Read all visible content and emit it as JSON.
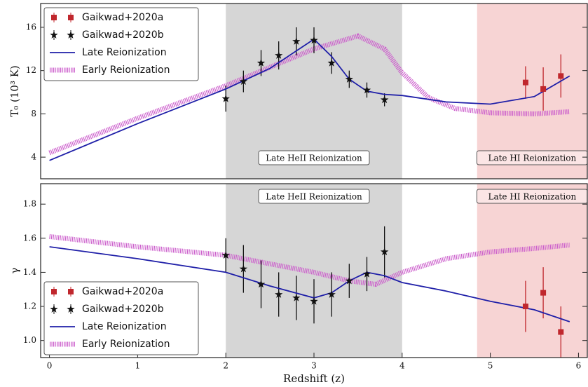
{
  "chart_data": [
    {
      "type": "line",
      "ylabel": "T₀ (10³ K)",
      "xlim": [
        -0.1,
        6.1
      ],
      "ylim": [
        2,
        18.2
      ],
      "yticks": [
        4,
        8,
        12,
        16
      ],
      "legend": "upper left",
      "annotation_position": "bottom",
      "spans": [
        {
          "xlim": [
            2,
            4
          ],
          "color": "#d6d6d6",
          "label": "Late HeII Reionization"
        },
        {
          "xlim": [
            4.85,
            6.1
          ],
          "color": "#f7d4d4",
          "label": "Late HI Reionization"
        }
      ],
      "series": [
        {
          "name": "Gaikwad+2020a",
          "color": "#c0272d",
          "marker": "square",
          "x": [
            5.4,
            5.6,
            5.8
          ],
          "values": [
            10.9,
            10.3,
            11.5
          ],
          "errors": [
            1.5,
            2,
            2
          ]
        },
        {
          "name": "Gaikwad+2020b",
          "color": "#111111",
          "marker": "star",
          "x": [
            2.0,
            2.2,
            2.4,
            2.6,
            2.8,
            3.0,
            3.2,
            3.4,
            3.6,
            3.8
          ],
          "values": [
            9.4,
            11.0,
            12.7,
            13.4,
            14.7,
            14.8,
            12.7,
            11.2,
            10.2,
            9.3
          ],
          "errors": [
            1.2,
            1,
            1.2,
            1.3,
            1.3,
            1.2,
            1,
            0.8,
            0.7,
            0.6
          ]
        },
        {
          "name": "Late Reionization",
          "color": "#1f1fa8",
          "linestyle": "solid",
          "x": [
            0,
            1,
            2,
            2.5,
            3,
            3.2,
            3.4,
            3.6,
            3.8,
            4,
            4.5,
            5,
            5.5,
            5.9
          ],
          "values": [
            3.7,
            7.1,
            10.3,
            12.2,
            14.9,
            13.3,
            11.2,
            10.1,
            9.8,
            9.7,
            9.1,
            8.9,
            9.6,
            11.5
          ]
        },
        {
          "name": "Early Reionization",
          "color": "#cc5fcc",
          "linestyle": "hatched",
          "x": [
            0,
            1,
            2,
            2.5,
            3,
            3.5,
            3.8,
            4,
            4.3,
            4.6,
            5,
            5.5,
            5.9
          ],
          "values": [
            4.4,
            7.6,
            10.6,
            12.3,
            14.0,
            15.2,
            14.0,
            11.8,
            9.5,
            8.5,
            8.1,
            8.0,
            8.2
          ]
        }
      ]
    },
    {
      "type": "line",
      "ylabel": "γ",
      "xlabel": "Redshift (z)",
      "xlim": [
        -0.1,
        6.1
      ],
      "ylim": [
        0.9,
        1.92
      ],
      "xticks": [
        0,
        1,
        2,
        3,
        4,
        5,
        6
      ],
      "yticks": [
        {
          "value": 1,
          "label": "1.0"
        },
        1.2,
        1.4,
        1.6,
        1.8
      ],
      "legend": "lower left",
      "annotation_position": "top",
      "spans": [
        {
          "xlim": [
            2,
            4
          ],
          "color": "#d6d6d6",
          "label": "Late HeII Reionization"
        },
        {
          "xlim": [
            4.85,
            6.1
          ],
          "color": "#f7d4d4",
          "label": "Late HI Reionization"
        }
      ],
      "series": [
        {
          "name": "Gaikwad+2020a",
          "color": "#c0272d",
          "marker": "square",
          "x": [
            5.4,
            5.6,
            5.8
          ],
          "values": [
            1.2,
            1.28,
            1.05
          ],
          "errors": [
            0.15,
            0.15,
            0.15
          ]
        },
        {
          "name": "Gaikwad+2020b",
          "color": "#111111",
          "marker": "star",
          "x": [
            2.0,
            2.2,
            2.4,
            2.6,
            2.8,
            3.0,
            3.2,
            3.4,
            3.6,
            3.8
          ],
          "values": [
            1.5,
            1.42,
            1.33,
            1.27,
            1.25,
            1.23,
            1.27,
            1.35,
            1.39,
            1.52
          ],
          "errors": [
            0.1,
            0.14,
            0.14,
            0.13,
            0.13,
            0.13,
            0.13,
            0.1,
            0.1,
            0.15
          ]
        },
        {
          "name": "Late Reionization",
          "color": "#1f1fa8",
          "linestyle": "solid",
          "x": [
            0,
            1,
            2,
            2.5,
            3,
            3.2,
            3.4,
            3.6,
            3.8,
            4,
            4.5,
            5,
            5.5,
            5.9
          ],
          "values": [
            1.55,
            1.48,
            1.4,
            1.32,
            1.25,
            1.28,
            1.35,
            1.4,
            1.38,
            1.34,
            1.29,
            1.23,
            1.18,
            1.11
          ]
        },
        {
          "name": "Early Reionization",
          "color": "#cc5fcc",
          "linestyle": "hatched",
          "x": [
            0,
            1,
            2,
            2.5,
            3,
            3.4,
            3.7,
            4,
            4.5,
            5,
            5.5,
            5.9
          ],
          "values": [
            1.61,
            1.55,
            1.5,
            1.45,
            1.4,
            1.35,
            1.33,
            1.4,
            1.48,
            1.52,
            1.54,
            1.56
          ]
        }
      ]
    }
  ]
}
